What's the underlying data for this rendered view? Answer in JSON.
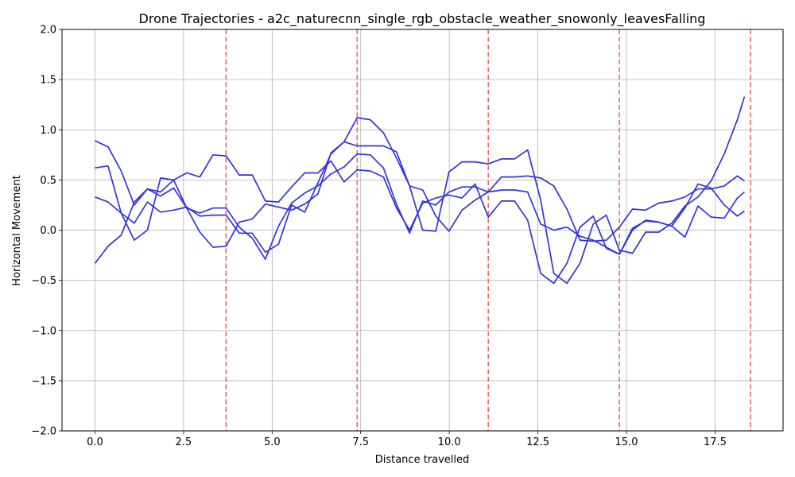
{
  "chart_data": {
    "type": "line",
    "title": "Drone Trajectories - a2c_naturecnn_single_rgb_obstacle_weather_snowonly_leavesFalling",
    "xlabel": "Distance travelled",
    "ylabel": "Horizontal Movement",
    "xlim": [
      -0.93,
      19.42
    ],
    "ylim": [
      -2.0,
      2.0
    ],
    "xticks": [
      0.0,
      2.5,
      5.0,
      7.5,
      10.0,
      12.5,
      15.0,
      17.5
    ],
    "xtick_labels": [
      "0.0",
      "2.5",
      "5.0",
      "7.5",
      "10.0",
      "12.5",
      "15.0",
      "17.5"
    ],
    "yticks": [
      -2.0,
      -1.5,
      -1.0,
      -0.5,
      0.0,
      0.5,
      1.0,
      1.5,
      2.0
    ],
    "ytick_labels": [
      "−2.0",
      "−1.5",
      "−1.0",
      "−0.5",
      "0.0",
      "0.5",
      "1.0",
      "1.5",
      "2.0"
    ],
    "grid": true,
    "series_color": "#3333dd",
    "marker_color": "#ee6666",
    "vertical_markers": [
      3.7,
      7.4,
      11.1,
      14.8,
      18.5
    ],
    "series": [
      {
        "x": [
          0.0,
          0.37,
          0.74,
          1.11,
          1.48,
          1.85,
          2.22,
          2.59,
          2.96,
          3.33,
          3.7,
          4.07,
          4.44,
          4.81,
          5.18,
          5.55,
          5.92,
          6.29,
          6.66,
          7.03,
          7.4,
          7.77,
          8.14,
          8.51,
          8.88,
          9.25,
          9.62,
          9.99,
          10.36,
          10.73,
          11.1,
          11.47,
          11.84,
          12.21,
          12.58,
          12.95,
          13.32,
          13.69,
          14.06,
          14.43,
          14.8,
          15.17,
          15.54,
          15.91,
          16.28,
          16.65,
          17.02,
          17.39,
          17.76,
          18.13,
          18.33
        ],
        "y": [
          0.33,
          0.28,
          0.17,
          0.07,
          0.28,
          0.18,
          0.2,
          0.23,
          0.14,
          0.15,
          0.15,
          -0.03,
          -0.03,
          -0.22,
          -0.14,
          0.25,
          0.18,
          0.47,
          0.76,
          0.88,
          1.12,
          1.1,
          0.97,
          0.72,
          0.44,
          0.4,
          0.14,
          -0.01,
          0.2,
          0.3,
          0.38,
          0.4,
          0.4,
          0.38,
          0.06,
          0.0,
          0.03,
          -0.06,
          -0.1,
          -0.17,
          -0.24,
          0.02,
          0.09,
          0.08,
          0.04,
          -0.07,
          0.24,
          0.13,
          0.12,
          0.32,
          0.38
        ]
      },
      {
        "x": [
          0.0,
          0.37,
          0.74,
          1.11,
          1.48,
          1.85,
          2.22,
          2.59,
          2.96,
          3.33,
          3.7,
          4.07,
          4.44,
          4.81,
          5.18,
          5.55,
          5.92,
          6.29,
          6.66,
          7.03,
          7.4,
          7.77,
          8.14,
          8.51,
          8.88,
          9.25,
          9.62,
          9.99,
          10.36,
          10.73,
          11.1,
          11.47,
          11.84,
          12.21,
          12.58,
          12.95,
          13.32,
          13.69,
          14.06,
          14.43,
          14.8,
          15.17,
          15.54,
          15.91,
          16.28,
          16.65,
          17.02,
          17.39,
          17.76,
          18.13,
          18.33
        ],
        "y": [
          0.89,
          0.83,
          0.59,
          0.25,
          0.41,
          0.34,
          0.42,
          0.22,
          -0.02,
          -0.17,
          -0.16,
          0.08,
          0.11,
          0.26,
          0.23,
          0.2,
          0.26,
          0.36,
          0.77,
          0.88,
          0.84,
          0.84,
          0.84,
          0.78,
          0.44,
          0.0,
          -0.01,
          0.58,
          0.68,
          0.68,
          0.66,
          0.71,
          0.71,
          0.8,
          0.3,
          -0.43,
          -0.53,
          -0.33,
          0.06,
          0.15,
          -0.2,
          -0.23,
          -0.02,
          -0.02,
          0.07,
          0.24,
          0.33,
          0.49,
          0.76,
          1.1,
          1.33
        ]
      },
      {
        "x": [
          0.0,
          0.37,
          0.74,
          1.11,
          1.48,
          1.85,
          2.22,
          2.59,
          2.96,
          3.33,
          3.7,
          4.07,
          4.44,
          4.81,
          5.18,
          5.55,
          5.92,
          6.29,
          6.66,
          7.03,
          7.4,
          7.77,
          8.14,
          8.51,
          8.88,
          9.25,
          9.62,
          9.99,
          10.36,
          10.73,
          11.1,
          11.47,
          11.84,
          12.21,
          12.58,
          12.95,
          13.32,
          13.69,
          14.06,
          14.43,
          14.8,
          15.17,
          15.54,
          15.91,
          16.28,
          16.65,
          17.02,
          17.39,
          17.76,
          18.13,
          18.33
        ],
        "y": [
          -0.33,
          -0.16,
          -0.05,
          0.28,
          0.41,
          0.38,
          0.5,
          0.57,
          0.53,
          0.75,
          0.74,
          0.55,
          0.55,
          0.29,
          0.28,
          0.43,
          0.57,
          0.57,
          0.69,
          0.48,
          0.6,
          0.59,
          0.53,
          0.22,
          0.0,
          0.27,
          0.32,
          0.35,
          0.32,
          0.46,
          0.13,
          0.29,
          0.29,
          0.1,
          -0.43,
          -0.53,
          -0.33,
          0.03,
          0.14,
          -0.18,
          -0.24,
          0.0,
          0.1,
          0.08,
          0.04,
          0.22,
          0.46,
          0.42,
          0.25,
          0.14,
          0.19
        ]
      },
      {
        "x": [
          0.0,
          0.37,
          0.74,
          1.11,
          1.48,
          1.85,
          2.22,
          2.59,
          2.96,
          3.33,
          3.7,
          4.07,
          4.44,
          4.81,
          5.18,
          5.55,
          5.92,
          6.29,
          6.66,
          7.03,
          7.4,
          7.77,
          8.14,
          8.51,
          8.88,
          9.25,
          9.62,
          9.99,
          10.36,
          10.73,
          11.1,
          11.47,
          11.84,
          12.21,
          12.58,
          12.95,
          13.32,
          13.69,
          14.06,
          14.43,
          14.8,
          15.17,
          15.54,
          15.91,
          16.28,
          16.65,
          17.02,
          17.39,
          17.76,
          18.13,
          18.33
        ],
        "y": [
          0.62,
          0.64,
          0.17,
          -0.1,
          0.0,
          0.52,
          0.5,
          0.22,
          0.17,
          0.22,
          0.22,
          0.03,
          -0.08,
          -0.29,
          0.04,
          0.27,
          0.37,
          0.44,
          0.56,
          0.63,
          0.76,
          0.75,
          0.62,
          0.26,
          -0.03,
          0.29,
          0.25,
          0.38,
          0.43,
          0.43,
          0.38,
          0.53,
          0.53,
          0.54,
          0.52,
          0.44,
          0.21,
          -0.1,
          -0.11,
          -0.1,
          0.03,
          0.21,
          0.2,
          0.27,
          0.29,
          0.33,
          0.41,
          0.41,
          0.44,
          0.54,
          0.49
        ]
      }
    ]
  }
}
